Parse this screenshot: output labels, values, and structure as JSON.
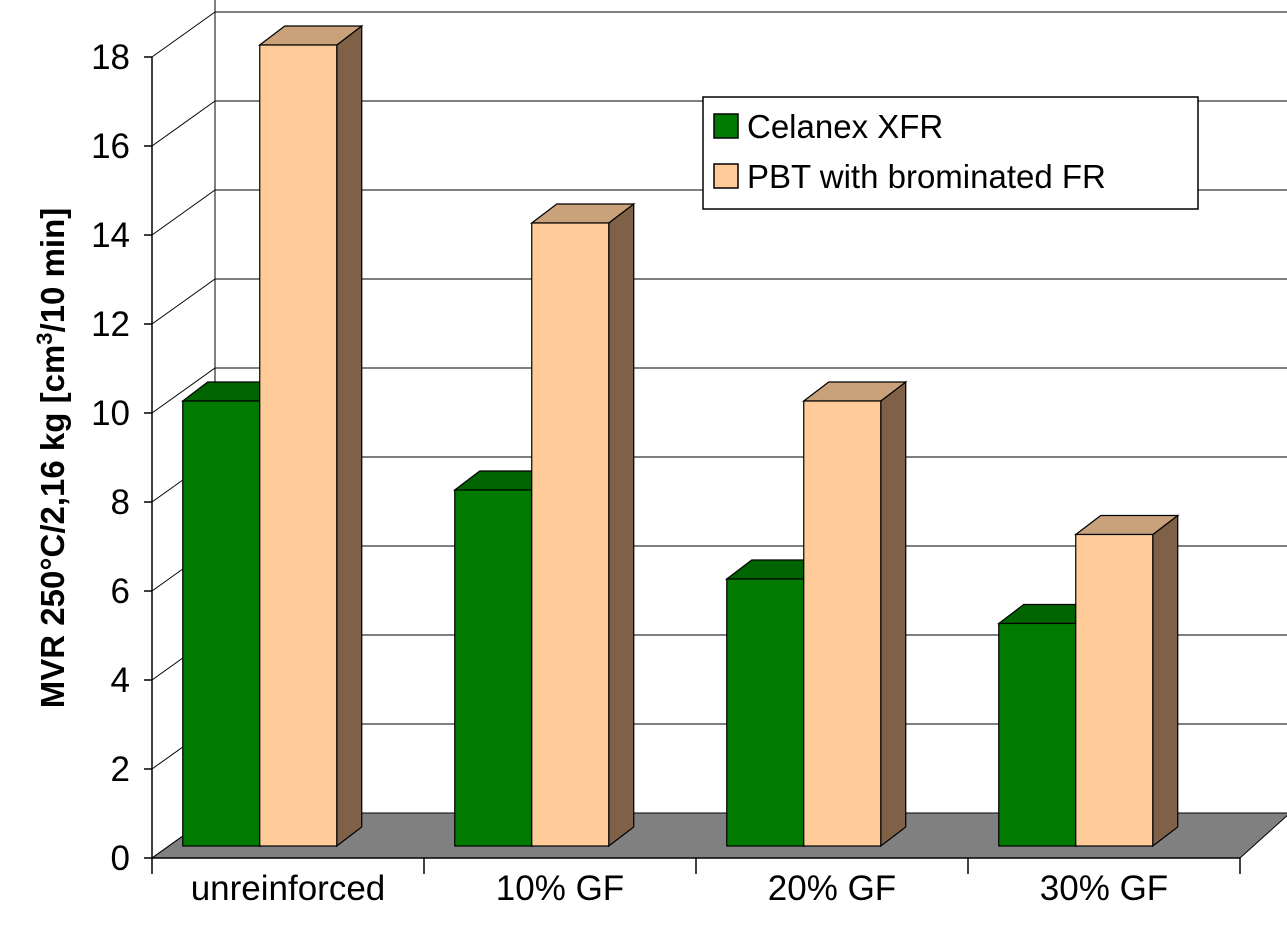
{
  "chart_data": {
    "type": "bar",
    "style": "3d-clustered-column",
    "categories": [
      "unreinforced",
      "10% GF",
      "20% GF",
      "30% GF"
    ],
    "series": [
      {
        "name": "Celanex XFR",
        "values": [
          10,
          8,
          6,
          5
        ],
        "color": "#007A00",
        "top_color": "#006400",
        "side_color": "#004D00"
      },
      {
        "name": "PBT with brominated FR",
        "values": [
          18,
          14,
          10,
          7
        ],
        "color": "#FFCC99",
        "top_color": "#C9A27C",
        "side_color": "#7F6147"
      }
    ],
    "ylabel": {
      "main": "MVR 250°C/2,16 kg [cm",
      "sup": "3",
      "tail": "/10 min]"
    },
    "xlabel": "",
    "title": "",
    "ylim": [
      0,
      18
    ],
    "yticks": [
      0,
      2,
      4,
      6,
      8,
      10,
      12,
      14,
      16,
      18
    ],
    "grid": true,
    "floor_color": "#808080",
    "legend_position": "top-right-inside"
  }
}
